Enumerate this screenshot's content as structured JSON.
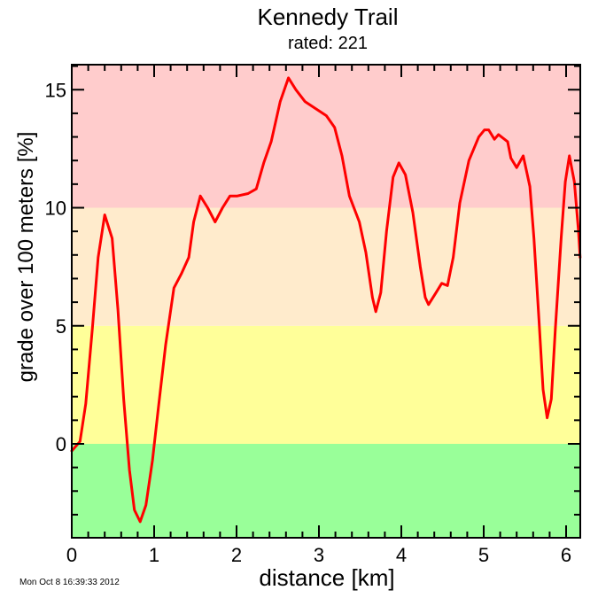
{
  "title": "Kennedy Trail",
  "subtitle": "rated: 221",
  "xlabel": "distance [km]",
  "ylabel": "grade over 100 meters [%]",
  "timestamp": "Mon Oct  8 16:39:33 2012",
  "bands": [
    {
      "from": -4,
      "to": 0,
      "color": "#99ff99",
      "name": "green"
    },
    {
      "from": 0,
      "to": 5,
      "color": "#ffff99",
      "name": "yellow"
    },
    {
      "from": 5,
      "to": 10,
      "color": "#ffebcc",
      "name": "orange"
    },
    {
      "from": 10,
      "to": 16.1,
      "color": "#ffcccc",
      "name": "red"
    }
  ],
  "line_color": "#ff0000",
  "chart_data": {
    "type": "line",
    "title": "Kennedy Trail",
    "subtitle": "rated: 221",
    "xlabel": "distance [km]",
    "ylabel": "grade over 100 meters [%]",
    "xlim": [
      0,
      6.17
    ],
    "ylim": [
      -4,
      16.1
    ],
    "xticks": [
      "0",
      "1",
      "2",
      "3",
      "4",
      "5",
      "6"
    ],
    "yticks": [
      "0",
      "5",
      "10",
      "15"
    ],
    "grid": false,
    "background_bands": [
      {
        "range": [
          -4,
          0
        ],
        "color": "#99ff99"
      },
      {
        "range": [
          0,
          5
        ],
        "color": "#ffff99"
      },
      {
        "range": [
          5,
          10
        ],
        "color": "#ffebcc"
      },
      {
        "range": [
          10,
          16.1
        ],
        "color": "#ffcccc"
      }
    ],
    "series": [
      {
        "name": "grade",
        "color": "#ff0000",
        "x": [
          0.0,
          0.1,
          0.17,
          0.25,
          0.32,
          0.4,
          0.49,
          0.56,
          0.63,
          0.7,
          0.76,
          0.83,
          0.9,
          0.98,
          1.05,
          1.14,
          1.24,
          1.33,
          1.42,
          1.48,
          1.56,
          1.65,
          1.74,
          1.83,
          1.92,
          2.01,
          2.14,
          2.24,
          2.33,
          2.42,
          2.53,
          2.63,
          2.72,
          2.83,
          2.96,
          3.09,
          3.19,
          3.28,
          3.37,
          3.49,
          3.57,
          3.65,
          3.69,
          3.75,
          3.82,
          3.9,
          3.97,
          4.05,
          4.14,
          4.23,
          4.29,
          4.33,
          4.42,
          4.49,
          4.56,
          4.63,
          4.71,
          4.82,
          4.94,
          5.01,
          5.06,
          5.13,
          5.18,
          5.29,
          5.33,
          5.4,
          5.48,
          5.56,
          5.61,
          5.67,
          5.72,
          5.77,
          5.82,
          5.87,
          5.94,
          5.99,
          6.04,
          6.1,
          6.15,
          6.17
        ],
        "y": [
          -0.3,
          0.1,
          1.7,
          4.9,
          7.9,
          9.7,
          8.7,
          5.7,
          1.9,
          -1.1,
          -2.8,
          -3.3,
          -2.6,
          -0.7,
          1.5,
          4.2,
          6.6,
          7.2,
          7.9,
          9.4,
          10.5,
          10.0,
          9.4,
          10.0,
          10.5,
          10.5,
          10.6,
          10.8,
          11.9,
          12.8,
          14.5,
          15.5,
          15.0,
          14.5,
          14.2,
          13.9,
          13.4,
          12.2,
          10.5,
          9.4,
          8.1,
          6.2,
          5.6,
          6.4,
          9.0,
          11.3,
          11.9,
          11.4,
          9.8,
          7.5,
          6.2,
          5.9,
          6.4,
          6.8,
          6.7,
          7.9,
          10.2,
          12.0,
          13.0,
          13.3,
          13.3,
          12.9,
          13.1,
          12.8,
          12.1,
          11.7,
          12.2,
          10.9,
          8.7,
          5.3,
          2.3,
          1.1,
          1.9,
          4.9,
          8.7,
          11.1,
          12.2,
          11.1,
          9.0,
          7.9
        ]
      }
    ]
  }
}
